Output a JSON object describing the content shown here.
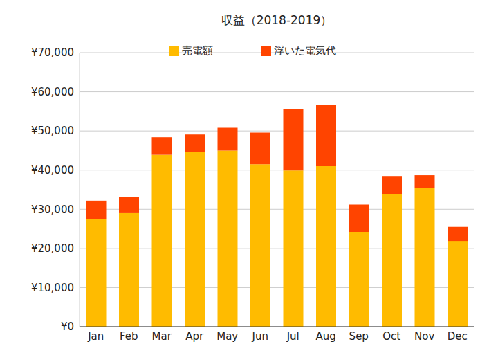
{
  "chart_data": {
    "type": "bar",
    "title": "収益（2018-2019）",
    "categories": [
      "Jan",
      "Feb",
      "Mar",
      "Apr",
      "May",
      "Jun",
      "Jul",
      "Aug",
      "Sep",
      "Oct",
      "Nov",
      "Dec"
    ],
    "series": [
      {
        "name": "売電額",
        "color": "#ffbb00",
        "values": [
          27400,
          29000,
          43900,
          44600,
          45000,
          41500,
          39900,
          41000,
          24200,
          33800,
          35500,
          21900
        ]
      },
      {
        "name": "浮いた電気代",
        "color": "#ff4400",
        "values": [
          4800,
          4100,
          4500,
          4500,
          5800,
          8100,
          15800,
          15700,
          7000,
          4700,
          3200,
          3600
        ]
      }
    ],
    "stacked": true,
    "ylim": [
      0,
      70000
    ],
    "yticks": [
      {
        "value": 0,
        "label": "¥0"
      },
      {
        "value": 10000,
        "label": "¥10,000"
      },
      {
        "value": 20000,
        "label": "¥20,000"
      },
      {
        "value": 30000,
        "label": "¥30,000"
      },
      {
        "value": 40000,
        "label": "¥40,000"
      },
      {
        "value": 50000,
        "label": "¥50,000"
      },
      {
        "value": 60000,
        "label": "¥60,000"
      },
      {
        "value": 70000,
        "label": "¥70,000"
      }
    ],
    "grid": true,
    "legend": "top"
  }
}
